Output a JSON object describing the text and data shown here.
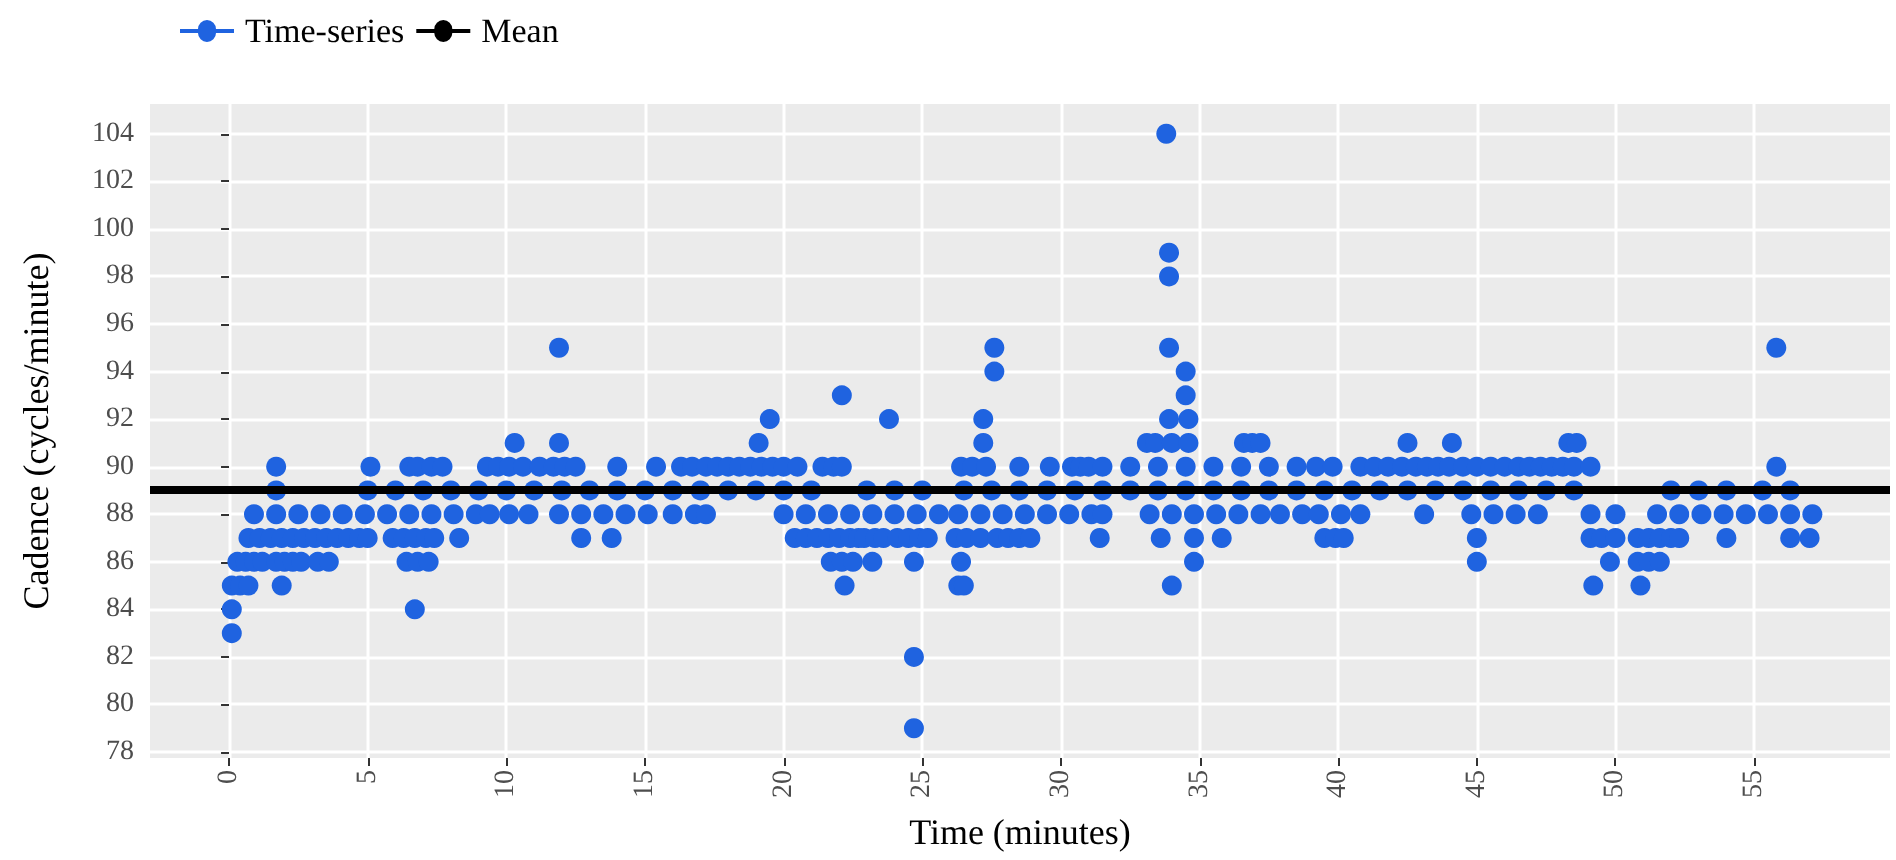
{
  "chart_data": {
    "type": "scatter",
    "xlabel": "Time (minutes)",
    "ylabel": "Cadence (cycles/minute)",
    "xlim": [
      -2.85,
      59.9
    ],
    "xticks": [
      0,
      5,
      10,
      15,
      20,
      25,
      30,
      35,
      40,
      45,
      50,
      55
    ],
    "ylim": [
      77.75,
      105.25
    ],
    "yticks": [
      78,
      80,
      82,
      84,
      86,
      88,
      90,
      92,
      94,
      96,
      98,
      100,
      102,
      104
    ],
    "grid": true,
    "legend": "top left",
    "marker": "circle",
    "ref_lines": [
      {
        "axis": "y",
        "value": 89,
        "label": "Mean",
        "color": "#000000"
      }
    ],
    "series": [
      {
        "name": "Time-series",
        "color": "#1f63e0",
        "x": [
          0.1,
          0.1,
          6.7,
          0.1,
          0.4,
          0.7,
          1.9,
          22.2,
          26.3,
          26.5,
          34.0,
          49.2,
          50.9,
          0.3,
          0.6,
          0.9,
          1.2,
          1.7,
          2.0,
          2.3,
          2.6,
          3.2,
          3.6,
          6.4,
          6.8,
          7.2,
          21.7,
          22.1,
          22.5,
          23.2,
          24.7,
          26.4,
          34.8,
          45.0,
          49.8,
          50.8,
          51.2,
          51.6,
          0.7,
          1.1,
          1.5,
          1.9,
          2.3,
          2.7,
          3.1,
          3.5,
          3.9,
          4.3,
          4.7,
          5.0,
          5.9,
          6.3,
          6.7,
          7.1,
          7.4,
          8.3,
          12.7,
          13.8,
          20.4,
          20.8,
          21.2,
          21.6,
          22.0,
          22.4,
          22.7,
          22.9,
          23.3,
          23.6,
          24.1,
          24.5,
          24.9,
          25.2,
          26.2,
          26.6,
          27.1,
          27.7,
          28.1,
          28.5,
          28.9,
          31.4,
          33.6,
          34.8,
          35.8,
          39.5,
          39.9,
          40.2,
          45.0,
          49.1,
          49.5,
          50.0,
          50.8,
          51.2,
          51.6,
          52.0,
          52.3,
          54.0,
          56.3,
          57.0,
          0.9,
          1.7,
          2.5,
          3.3,
          4.1,
          4.9,
          5.7,
          6.5,
          7.3,
          8.1,
          8.9,
          9.4,
          10.1,
          10.8,
          11.9,
          12.7,
          13.5,
          14.3,
          15.1,
          16.0,
          16.8,
          17.2,
          20.0,
          20.8,
          21.6,
          22.4,
          23.2,
          24.0,
          24.8,
          25.6,
          26.3,
          27.1,
          27.9,
          28.7,
          29.5,
          30.3,
          31.1,
          31.5,
          33.2,
          34.0,
          34.8,
          35.6,
          36.4,
          37.2,
          37.9,
          38.7,
          39.3,
          40.1,
          40.8,
          43.1,
          44.8,
          45.6,
          46.4,
          47.2,
          49.1,
          50.0,
          51.5,
          52.3,
          53.1,
          53.9,
          54.7,
          55.5,
          56.3,
          57.1,
          1.7,
          5,
          6,
          7,
          8,
          9,
          10,
          11,
          12,
          13,
          14,
          15,
          16,
          17,
          18,
          19,
          20,
          21,
          23,
          24,
          25,
          26.5,
          27.5,
          28.5,
          29.5,
          30.5,
          31.5,
          32.5,
          33.5,
          34.5,
          35.5,
          36.5,
          37.5,
          38.5,
          39.5,
          40.5,
          41.5,
          42.5,
          43.5,
          44.5,
          45.5,
          46.5,
          47.5,
          48.5,
          52,
          53,
          54,
          55.3,
          56.3,
          1.7,
          5.1,
          6.5,
          6.8,
          7.3,
          7.7,
          9.3,
          9.7,
          10.1,
          10.6,
          11.2,
          11.7,
          12.1,
          12.5,
          14.0,
          15.4,
          16.3,
          16.7,
          17.2,
          17.6,
          18.0,
          18.4,
          18.8,
          19.2,
          19.6,
          20.0,
          20.5,
          21.4,
          21.8,
          22.1,
          26.4,
          26.8,
          27.3,
          28.5,
          29.6,
          30.4,
          30.7,
          31.0,
          31.5,
          32.5,
          33.5,
          34.5,
          35.5,
          36.5,
          37.5,
          38.5,
          39.2,
          39.8,
          40.8,
          41.3,
          41.8,
          42.3,
          42.8,
          43.2,
          43.6,
          44.0,
          44.5,
          45.0,
          45.5,
          46.0,
          46.5,
          46.9,
          47.3,
          47.7,
          48.1,
          48.5,
          49.1,
          55.8,
          10.3,
          11.9,
          19.1,
          27.2,
          33.1,
          33.4,
          34.0,
          34.6,
          36.6,
          36.9,
          37.2,
          42.5,
          44.1,
          48.3,
          48.6,
          19.5,
          23.8,
          27.2,
          33.9,
          34.6,
          22.1,
          34.5,
          27.6,
          34.5,
          11.9,
          27.6,
          33.9,
          55.8,
          33.9,
          33.9,
          33.8,
          24.7,
          24.7
        ],
        "values": [
          83,
          84,
          84,
          85,
          85,
          85,
          85,
          85,
          85,
          85,
          85,
          85,
          85,
          86,
          86,
          86,
          86,
          86,
          86,
          86,
          86,
          86,
          86,
          86,
          86,
          86,
          86,
          86,
          86,
          86,
          86,
          86,
          86,
          86,
          86,
          86,
          86,
          86,
          87,
          87,
          87,
          87,
          87,
          87,
          87,
          87,
          87,
          87,
          87,
          87,
          87,
          87,
          87,
          87,
          87,
          87,
          87,
          87,
          87,
          87,
          87,
          87,
          87,
          87,
          87,
          87,
          87,
          87,
          87,
          87,
          87,
          87,
          87,
          87,
          87,
          87,
          87,
          87,
          87,
          87,
          87,
          87,
          87,
          87,
          87,
          87,
          87,
          87,
          87,
          87,
          87,
          87,
          87,
          87,
          87,
          87,
          87,
          87,
          88,
          88,
          88,
          88,
          88,
          88,
          88,
          88,
          88,
          88,
          88,
          88,
          88,
          88,
          88,
          88,
          88,
          88,
          88,
          88,
          88,
          88,
          88,
          88,
          88,
          88,
          88,
          88,
          88,
          88,
          88,
          88,
          88,
          88,
          88,
          88,
          88,
          88,
          88,
          88,
          88,
          88,
          88,
          88,
          88,
          88,
          88,
          88,
          88,
          88,
          88,
          88,
          88,
          88,
          88,
          88,
          88,
          88,
          88,
          88,
          88,
          88,
          88,
          88,
          89,
          89,
          89,
          89,
          89,
          89,
          89,
          89,
          89,
          89,
          89,
          89,
          89,
          89,
          89,
          89,
          89,
          89,
          89,
          89,
          89,
          89,
          89,
          89,
          89,
          89,
          89,
          89,
          89,
          89,
          89,
          89,
          89,
          89,
          89,
          89,
          89,
          89,
          89,
          89,
          89,
          89,
          89,
          89,
          89,
          89,
          89,
          89,
          89,
          90,
          90,
          90,
          90,
          90,
          90,
          90,
          90,
          90,
          90,
          90,
          90,
          90,
          90,
          90,
          90,
          90,
          90,
          90,
          90,
          90,
          90,
          90,
          90,
          90,
          90,
          90,
          90,
          90,
          90,
          90,
          90,
          90,
          90,
          90,
          90,
          90,
          90,
          90,
          90,
          90,
          90,
          90,
          90,
          90,
          90,
          90,
          90,
          90,
          90,
          90,
          90,
          90,
          90,
          90,
          90,
          90,
          90,
          90,
          90,
          90,
          90,
          90,
          90,
          90,
          90,
          90,
          90,
          91,
          91,
          91,
          91,
          91,
          91,
          91,
          91,
          91,
          91,
          91,
          91,
          91,
          91,
          91,
          92,
          92,
          92,
          92,
          92,
          93,
          93,
          94,
          94,
          95,
          95,
          95,
          95,
          98,
          99,
          104,
          82,
          79
        ]
      }
    ]
  }
}
